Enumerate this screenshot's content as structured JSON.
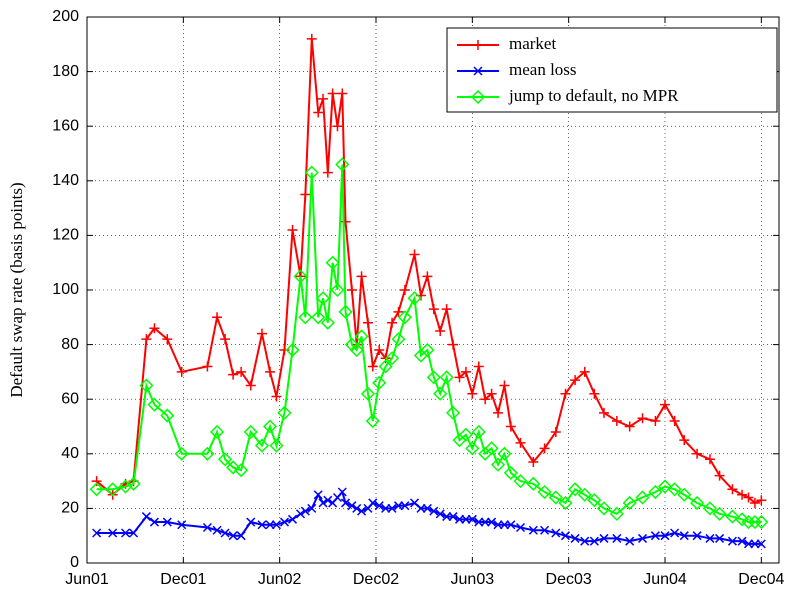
{
  "chart_data": {
    "type": "line",
    "y_label": "Default swap rate (basis points)",
    "x": [
      0.6,
      1.6,
      2.4,
      2.9,
      3.7,
      4.2,
      5.0,
      5.9,
      7.5,
      8.1,
      8.6,
      9.1,
      9.6,
      10.2,
      10.9,
      11.4,
      11.8,
      12.3,
      12.8,
      13.3,
      13.6,
      14.0,
      14.4,
      14.7,
      15.0,
      15.3,
      15.6,
      15.9,
      16.1,
      16.5,
      16.8,
      17.1,
      17.5,
      17.8,
      18.2,
      18.6,
      19.0,
      19.4,
      19.8,
      20.4,
      20.8,
      21.2,
      21.6,
      22.0,
      22.4,
      22.8,
      23.2,
      23.6,
      24.0,
      24.4,
      24.8,
      25.2,
      25.6,
      26.0,
      26.4,
      27.0,
      27.8,
      28.5,
      29.2,
      29.8,
      30.4,
      31.0,
      31.6,
      32.2,
      33.0,
      33.8,
      34.6,
      35.4,
      36.0,
      36.6,
      37.2,
      38.0,
      38.8,
      39.4,
      40.2,
      40.8,
      41.2,
      41.6,
      42.0
    ],
    "series": [
      {
        "name": "market",
        "color": "#ff0000",
        "marker": "plus",
        "values": [
          30,
          25,
          29,
          30,
          82,
          86,
          82,
          70,
          72,
          90,
          82,
          69,
          70,
          65,
          84,
          70,
          61,
          78,
          122,
          105,
          135,
          192,
          165,
          170,
          143,
          172,
          160,
          172,
          125,
          100,
          80,
          105,
          88,
          72,
          78,
          75,
          88,
          92,
          100,
          113,
          98,
          105,
          93,
          85,
          93,
          80,
          68,
          70,
          62,
          72,
          60,
          62,
          55,
          65,
          50,
          44,
          37,
          42,
          48,
          62,
          67,
          70,
          62,
          55,
          52,
          50,
          53,
          52,
          58,
          52,
          45,
          40,
          38,
          32,
          27,
          25,
          24,
          22,
          23
        ]
      },
      {
        "name": "mean loss",
        "color": "#0000ff",
        "marker": "cross",
        "values": [
          11,
          11,
          11,
          11,
          17,
          15,
          15,
          14,
          13,
          12,
          11,
          10,
          10,
          15,
          14,
          14,
          14,
          15,
          16,
          18,
          19,
          20,
          25,
          22,
          23,
          22,
          24,
          26,
          22,
          21,
          20,
          19,
          20,
          22,
          21,
          20,
          20,
          21,
          21,
          22,
          20,
          20,
          19,
          18,
          17,
          17,
          16,
          16,
          16,
          15,
          15,
          15,
          14,
          14,
          14,
          13,
          12,
          12,
          11,
          10,
          9,
          8,
          8,
          9,
          9,
          8,
          9,
          10,
          10,
          11,
          10,
          10,
          9,
          9,
          8,
          8,
          7,
          7,
          7
        ]
      },
      {
        "name": "jump to default, no MPR",
        "color": "#00ff00",
        "marker": "diamond",
        "values": [
          27,
          27,
          28,
          29,
          65,
          58,
          54,
          40,
          40,
          48,
          38,
          35,
          34,
          48,
          43,
          50,
          43,
          55,
          78,
          105,
          90,
          143,
          90,
          97,
          88,
          110,
          100,
          146,
          92,
          80,
          78,
          83,
          62,
          52,
          66,
          72,
          75,
          82,
          90,
          97,
          76,
          78,
          68,
          62,
          68,
          55,
          45,
          47,
          42,
          48,
          40,
          42,
          36,
          40,
          33,
          30,
          29,
          26,
          24,
          22,
          27,
          25,
          23,
          20,
          18,
          22,
          24,
          26,
          28,
          27,
          25,
          22,
          20,
          18,
          17,
          16,
          15,
          15,
          15
        ]
      }
    ],
    "xlim": [
      0,
      43.1
    ],
    "xticks": [
      {
        "value": 0,
        "label": "Jun01"
      },
      {
        "value": 6,
        "label": "Dec01"
      },
      {
        "value": 12,
        "label": "Jun02"
      },
      {
        "value": 18,
        "label": "Dec02"
      },
      {
        "value": 24,
        "label": "Jun03"
      },
      {
        "value": 30,
        "label": "Dec03"
      },
      {
        "value": 36,
        "label": "Jun04"
      },
      {
        "value": 42,
        "label": "Dec04"
      }
    ],
    "ylim": [
      0,
      200
    ],
    "yticks": [
      0,
      20,
      40,
      60,
      80,
      100,
      120,
      140,
      160,
      180,
      200
    ],
    "grid": true,
    "legend": "upper right"
  }
}
